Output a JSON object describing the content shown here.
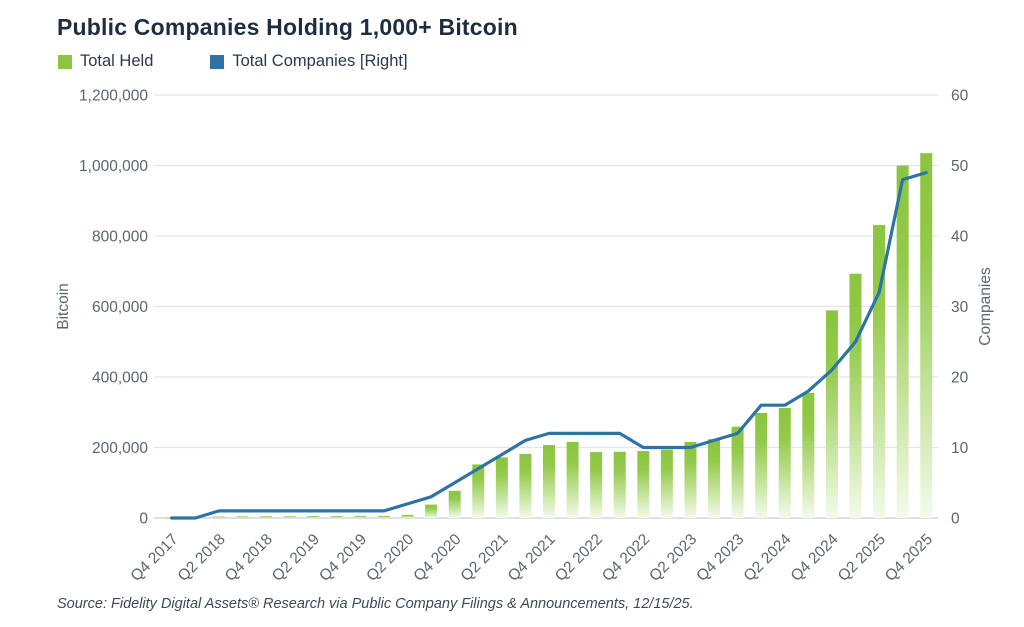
{
  "title": "Public Companies Holding 1,000+ Bitcoin",
  "legend": {
    "items": [
      {
        "label": "Total Held",
        "color": "#8cc63e"
      },
      {
        "label": "Total Companies [Right]",
        "color": "#2e73a5"
      }
    ]
  },
  "source": "Source: Fidelity Digital Assets® Research via Public Company Filings & Announcements, 12/15/25.",
  "chart_data": {
    "type": "bar",
    "title": "Public Companies Holding 1,000+ Bitcoin",
    "grid": true,
    "legend_position": "top-left",
    "categories": [
      "Q4 2017",
      "Q1 2018",
      "Q2 2018",
      "Q3 2018",
      "Q4 2018",
      "Q1 2019",
      "Q2 2019",
      "Q3 2019",
      "Q4 2019",
      "Q1 2020",
      "Q2 2020",
      "Q3 2020",
      "Q4 2020",
      "Q1 2021",
      "Q2 2021",
      "Q3 2021",
      "Q4 2021",
      "Q1 2022",
      "Q2 2022",
      "Q3 2022",
      "Q4 2022",
      "Q1 2023",
      "Q2 2023",
      "Q3 2023",
      "Q4 2023",
      "Q1 2024",
      "Q2 2024",
      "Q3 2024",
      "Q4 2024",
      "Q1 2025",
      "Q2 2025",
      "Q3 2025",
      "Q4 2025"
    ],
    "x_tick_labels": [
      "Q4 2017",
      "Q2 2018",
      "Q4 2018",
      "Q2 2019",
      "Q4 2019",
      "Q2 2020",
      "Q4 2020",
      "Q2 2021",
      "Q4 2021",
      "Q2 2022",
      "Q4 2022",
      "Q2 2023",
      "Q4 2023",
      "Q2 2024",
      "Q4 2024",
      "Q2 2025",
      "Q4 2025"
    ],
    "x_tick_indices": [
      0,
      2,
      4,
      6,
      8,
      10,
      12,
      14,
      16,
      18,
      20,
      22,
      24,
      26,
      28,
      30,
      32
    ],
    "series": [
      {
        "name": "Total Held",
        "type": "bar",
        "axis": "left",
        "color": "#8cc63e",
        "values": [
          1000,
          2000,
          4000,
          4500,
          5000,
          5000,
          5500,
          5500,
          6000,
          6000,
          9000,
          38000,
          77000,
          152000,
          172000,
          182000,
          207000,
          216000,
          187000,
          188000,
          190000,
          194000,
          216000,
          224000,
          259000,
          298000,
          312000,
          355000,
          589000,
          693000,
          831000,
          1000000,
          1035000
        ]
      },
      {
        "name": "Total Companies [Right]",
        "type": "line",
        "axis": "right",
        "color": "#2e73a5",
        "values": [
          0,
          0,
          1,
          1,
          1,
          1,
          1,
          1,
          1,
          1,
          2,
          3,
          5,
          7,
          9,
          11,
          12,
          12,
          12,
          12,
          10,
          10,
          10,
          11,
          12,
          16,
          16,
          18,
          21,
          25,
          32,
          48,
          49
        ]
      }
    ],
    "left_axis": {
      "label": "Bitcoin",
      "min": 0,
      "max": 1200000,
      "tick_step": 200000,
      "tick_labels": [
        "0",
        "200,000",
        "400,000",
        "600,000",
        "800,000",
        "1,000,000",
        "1,200,000"
      ]
    },
    "right_axis": {
      "label": "Companies",
      "min": 0,
      "max": 60,
      "tick_step": 10,
      "tick_labels": [
        "0",
        "10",
        "20",
        "30",
        "40",
        "50",
        "60"
      ]
    }
  },
  "colors": {
    "bar_top": "#8cc63e",
    "bar_bottom": "#f4faec",
    "line": "#2e73a5",
    "grid": "#e3e6e8",
    "axis_text": "#5b6670",
    "title_text": "#1e2e3e"
  }
}
